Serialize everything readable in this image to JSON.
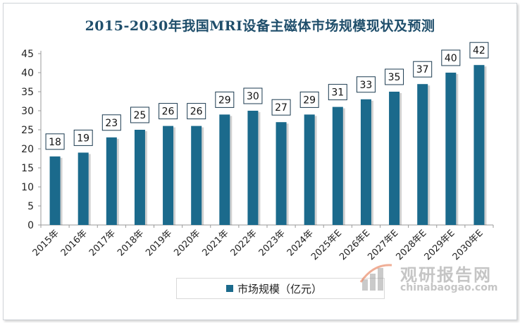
{
  "chart_data": {
    "type": "bar",
    "title": "2015-2030年我国MRI设备主磁体市场规模现状及预测",
    "categories": [
      "2015年",
      "2016年",
      "2017年",
      "2018年",
      "2019年",
      "2020年",
      "2021年",
      "2022年",
      "2023年",
      "2024年",
      "2025年E",
      "2026年E",
      "2027年E",
      "2028年E",
      "2029年E",
      "2030年E"
    ],
    "series": [
      {
        "name": "市场规模（亿元）",
        "values": [
          18,
          19,
          23,
          25,
          26,
          26,
          29,
          30,
          27,
          29,
          31,
          33,
          35,
          37,
          40,
          42
        ]
      }
    ],
    "ylim": [
      0,
      45
    ],
    "yticks": [
      0,
      5,
      10,
      15,
      20,
      25,
      30,
      35,
      40,
      45
    ],
    "grid": false,
    "legend_position": "bottom",
    "bar_color": "#1b6a8c"
  },
  "watermark": {
    "cn": "观研报告网",
    "en": "chinabaogao.com"
  }
}
